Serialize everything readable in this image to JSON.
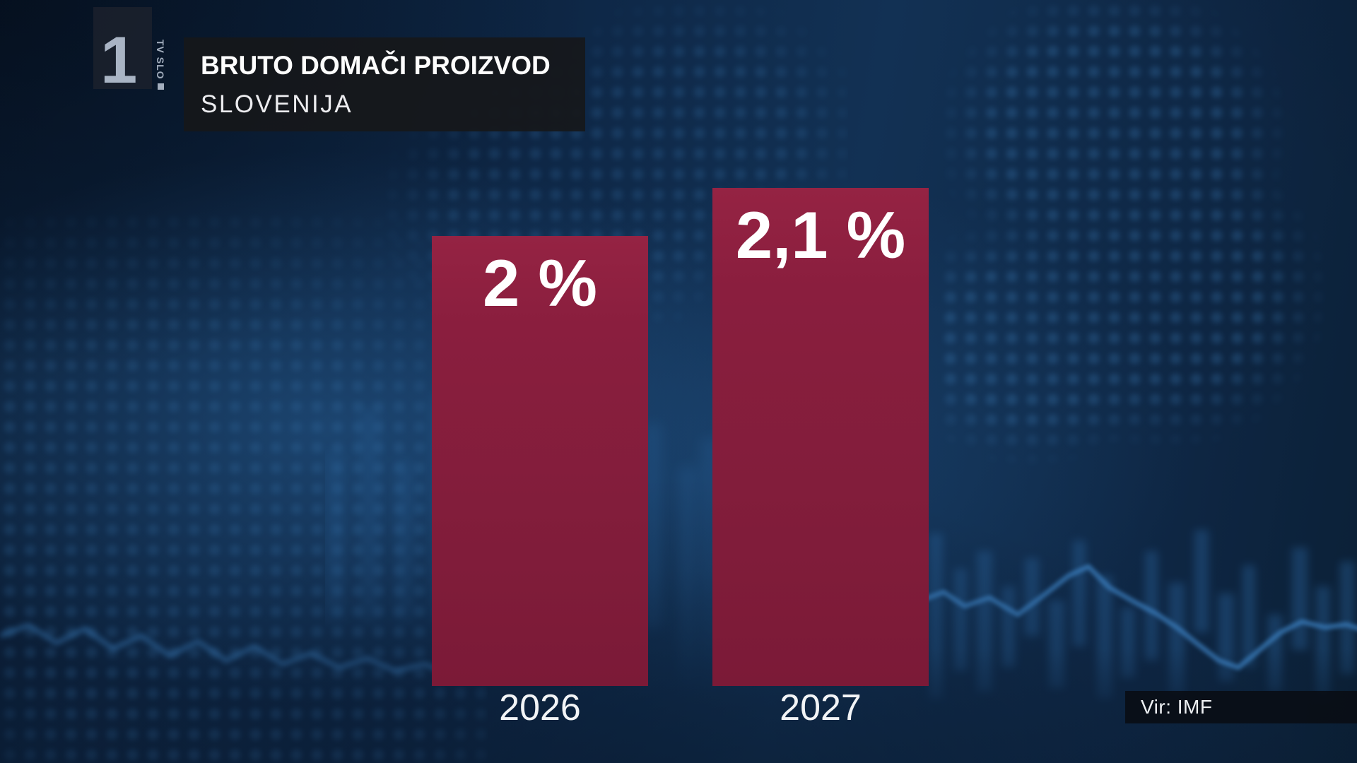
{
  "channel": {
    "logo_number": "1",
    "logo_vertical_text": "TV SLO"
  },
  "header": {
    "title": "BRUTO DOMAČI PROIZVOD",
    "subtitle": "SLOVENIJA"
  },
  "source_box": {
    "label": "Vir: IMF"
  },
  "chart_data": {
    "type": "bar",
    "title": "BRUTO DOMAČI PROIZVOD — SLOVENIJA",
    "categories": [
      "2026",
      "2027"
    ],
    "values": [
      2.0,
      2.1
    ],
    "value_labels": [
      "2 %",
      "2,1 %"
    ],
    "unit": "%",
    "source": "Vir: IMF",
    "bar_color": "#8e2040",
    "label_color": "#ffffff",
    "ylim": [
      0,
      2.2
    ],
    "grid": false,
    "legend": false
  },
  "colors": {
    "background": "#0c2340",
    "bar": "#8e2040",
    "text": "#ffffff",
    "accent_glow": "#3f86c9"
  }
}
